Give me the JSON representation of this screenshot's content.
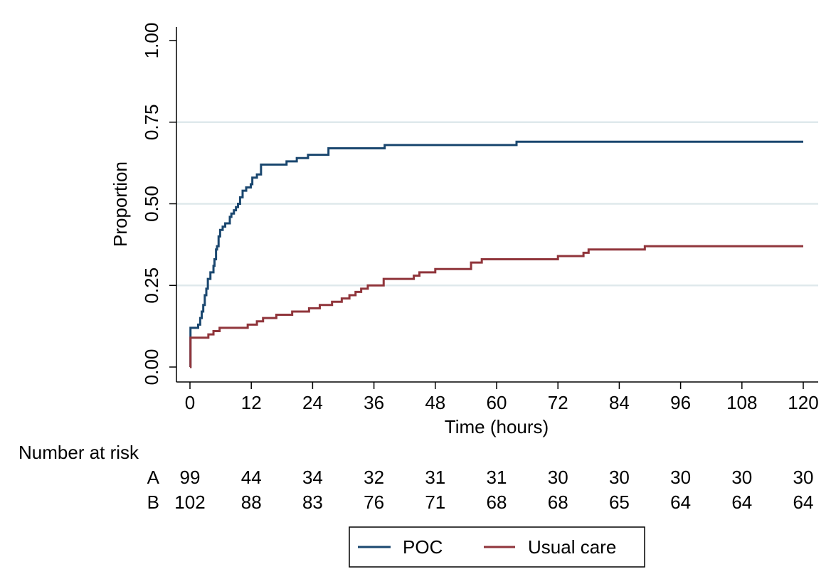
{
  "chart_data": {
    "type": "line",
    "title": "",
    "xlabel": "Time (hours)",
    "ylabel": "Proportion",
    "xlim": [
      0,
      120
    ],
    "ylim": [
      0,
      1
    ],
    "xticks": [
      0,
      12,
      24,
      36,
      48,
      60,
      72,
      84,
      96,
      108,
      120
    ],
    "xtick_labels": [
      "0",
      "12",
      "24",
      "36",
      "48",
      "60",
      "72",
      "84",
      "96",
      "108",
      "120"
    ],
    "yticks": [
      0,
      0.25,
      0.5,
      0.75,
      1.0
    ],
    "ytick_labels": [
      "0.00",
      "0.25",
      "0.50",
      "0.75",
      "1.00"
    ],
    "grid": "horizontal",
    "legend_position": "bottom",
    "colors": {
      "POC": "#1a476f",
      "Usual care": "#90353b"
    },
    "series": [
      {
        "name": "POC",
        "step": true,
        "points": [
          [
            0,
            0
          ],
          [
            0.1,
            0.12
          ],
          [
            1.3,
            0.12
          ],
          [
            1.6,
            0.13
          ],
          [
            2.0,
            0.15
          ],
          [
            2.3,
            0.17
          ],
          [
            2.6,
            0.19
          ],
          [
            2.9,
            0.22
          ],
          [
            3.2,
            0.24
          ],
          [
            3.5,
            0.27
          ],
          [
            4.0,
            0.29
          ],
          [
            4.6,
            0.31
          ],
          [
            4.8,
            0.33
          ],
          [
            5.1,
            0.36
          ],
          [
            5.3,
            0.37
          ],
          [
            5.6,
            0.4
          ],
          [
            5.9,
            0.42
          ],
          [
            6.4,
            0.43
          ],
          [
            6.9,
            0.44
          ],
          [
            7.8,
            0.46
          ],
          [
            8.1,
            0.47
          ],
          [
            8.6,
            0.48
          ],
          [
            9.0,
            0.49
          ],
          [
            9.4,
            0.5
          ],
          [
            9.8,
            0.52
          ],
          [
            10.3,
            0.54
          ],
          [
            11.0,
            0.55
          ],
          [
            11.9,
            0.56
          ],
          [
            12.2,
            0.58
          ],
          [
            13.1,
            0.59
          ],
          [
            13.9,
            0.62
          ],
          [
            15.0,
            0.62
          ],
          [
            18.9,
            0.63
          ],
          [
            20.9,
            0.64
          ],
          [
            23.1,
            0.65
          ],
          [
            27.1,
            0.67
          ],
          [
            38.1,
            0.68
          ],
          [
            63.9,
            0.69
          ],
          [
            120,
            0.69
          ]
        ]
      },
      {
        "name": "Usual care",
        "step": true,
        "points": [
          [
            0,
            0
          ],
          [
            0.1,
            0.09
          ],
          [
            0.9,
            0.09
          ],
          [
            1.1,
            0.09
          ],
          [
            3.6,
            0.1
          ],
          [
            4.6,
            0.11
          ],
          [
            5.8,
            0.12
          ],
          [
            7.2,
            0.12
          ],
          [
            8.3,
            0.12
          ],
          [
            11.3,
            0.13
          ],
          [
            13.1,
            0.14
          ],
          [
            14.3,
            0.15
          ],
          [
            16.9,
            0.16
          ],
          [
            20.0,
            0.17
          ],
          [
            23.3,
            0.18
          ],
          [
            25.4,
            0.19
          ],
          [
            27.8,
            0.2
          ],
          [
            29.7,
            0.21
          ],
          [
            31.2,
            0.22
          ],
          [
            32.4,
            0.23
          ],
          [
            33.5,
            0.24
          ],
          [
            34.8,
            0.25
          ],
          [
            37.9,
            0.27
          ],
          [
            43.8,
            0.28
          ],
          [
            44.9,
            0.29
          ],
          [
            48.0,
            0.3
          ],
          [
            55.0,
            0.32
          ],
          [
            57.1,
            0.33
          ],
          [
            72.0,
            0.34
          ],
          [
            77.0,
            0.35
          ],
          [
            78.0,
            0.36
          ],
          [
            89.0,
            0.37
          ],
          [
            120,
            0.37
          ]
        ]
      }
    ]
  },
  "risk_table": {
    "title": "Number at risk",
    "rows": [
      {
        "label": "A",
        "values": [
          "99",
          "44",
          "34",
          "32",
          "31",
          "31",
          "30",
          "30",
          "30",
          "30",
          "30"
        ]
      },
      {
        "label": "B",
        "values": [
          "102",
          "88",
          "83",
          "76",
          "71",
          "68",
          "68",
          "65",
          "64",
          "64",
          "64"
        ]
      }
    ]
  },
  "legend": {
    "items": [
      {
        "label": "POC",
        "color": "#1a476f"
      },
      {
        "label": "Usual care",
        "color": "#90353b"
      }
    ]
  }
}
